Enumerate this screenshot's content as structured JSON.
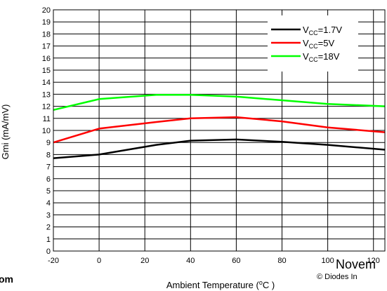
{
  "chart_data": {
    "type": "line",
    "title": "",
    "xlabel": "Ambient Temperature (",
    "xlabel_unit": "o",
    "xlabel_end": "C )",
    "ylabel": "Gmi (mA/mV)",
    "xlim": [
      -20,
      125
    ],
    "ylim": [
      0,
      20
    ],
    "x_ticks": [
      "-20",
      "0",
      "20",
      "40",
      "60",
      "80",
      "100",
      "120"
    ],
    "y_ticks": [
      "0",
      "1",
      "2",
      "3",
      "4",
      "5",
      "6",
      "7",
      "8",
      "9",
      "10",
      "11",
      "12",
      "13",
      "14",
      "15",
      "16",
      "17",
      "18",
      "19",
      "20"
    ],
    "grid": true,
    "legend_position": "top-right",
    "series": [
      {
        "name_prefix": "V",
        "name_sub": "CC",
        "name_suffix": "=1.7V",
        "color": "#000000",
        "x": [
          -20,
          0,
          25,
          40,
          60,
          80,
          100,
          125
        ],
        "y": [
          7.7,
          8.0,
          8.8,
          9.15,
          9.25,
          9.05,
          8.8,
          8.4
        ]
      },
      {
        "name_prefix": "V",
        "name_sub": "CC",
        "name_suffix": "=5V",
        "color": "#ff0000",
        "x": [
          -20,
          0,
          25,
          40,
          60,
          80,
          100,
          125
        ],
        "y": [
          9.0,
          10.15,
          10.7,
          11.0,
          11.1,
          10.75,
          10.25,
          9.85
        ]
      },
      {
        "name_prefix": "V",
        "name_sub": "CC",
        "name_suffix": "=18V",
        "color": "#00ff00",
        "x": [
          -20,
          0,
          25,
          40,
          60,
          80,
          100,
          125
        ],
        "y": [
          11.7,
          12.6,
          12.95,
          12.95,
          12.8,
          12.5,
          12.2,
          12.0
        ]
      }
    ]
  },
  "footer": {
    "left_text": "om",
    "date_text": "Novem",
    "copyright_text": "© Diodes In"
  }
}
